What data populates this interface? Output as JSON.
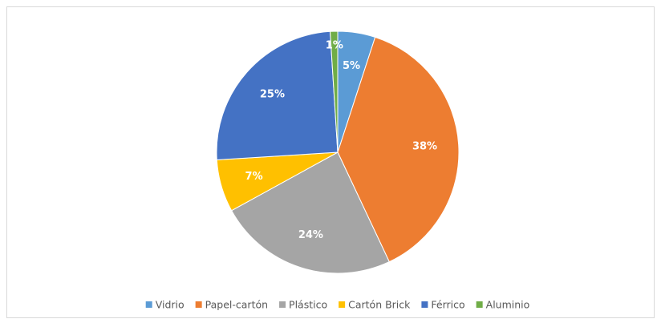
{
  "chart_data": {
    "type": "pie",
    "categories": [
      "Vidrio",
      "Papel-cartón",
      "Plástico",
      "Cartón Brick",
      "Férrico",
      "Aluminio"
    ],
    "values": [
      5,
      38,
      24,
      7,
      25,
      1
    ],
    "value_labels": [
      "5%",
      "38%",
      "24%",
      "7%",
      "25%",
      "1%"
    ],
    "colors": [
      "#5b9bd5",
      "#ed7d31",
      "#a5a5a5",
      "#ffc000",
      "#4472c4",
      "#70ad47"
    ],
    "legend": "bottom"
  }
}
